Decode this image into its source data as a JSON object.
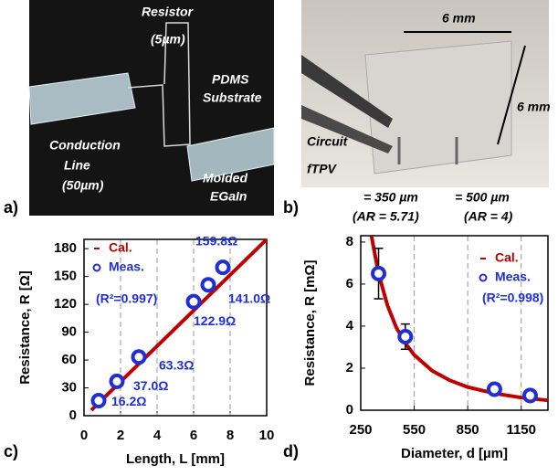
{
  "panel_labels": [
    "a)",
    "b)",
    "c)",
    "d)"
  ],
  "photo_a": {
    "resistor": [
      "Resistor",
      "(5µm)"
    ],
    "substrate": [
      "PDMS",
      "Substrate"
    ],
    "conduction": [
      "Conduction",
      "Line",
      "(50µm)"
    ],
    "molded": [
      "Molded",
      "EGaIn"
    ]
  },
  "photo_b": {
    "width": "6 mm",
    "height": "6 mm",
    "circuit": "Circuit",
    "ftpv": "fTPV",
    "d1": "= 350 µm",
    "ar1": "(AR = 5.71)",
    "d2": "= 500 µm",
    "ar2": "(AR = 4)"
  },
  "chart_data": [
    {
      "type": "scatter",
      "xlabel": "Length, L [mm]",
      "ylabel": "Resistance, R [Ω]",
      "annotation": "(R²=0.997)",
      "xlim": [
        0,
        10
      ],
      "ylim": [
        0,
        190
      ],
      "xticks": [
        0,
        2,
        4,
        6,
        8,
        10
      ],
      "yticks": [
        0,
        30,
        60,
        90,
        120,
        150,
        180
      ],
      "grid": "x",
      "series": [
        {
          "name": "Cal.",
          "mode": "line",
          "color": "#c00000",
          "x": [
            0.4,
            10
          ],
          "values": [
            6,
            190
          ]
        },
        {
          "name": "Meas.",
          "mode": "markers",
          "color": "#1f2fd6",
          "x": [
            0.8,
            1.8,
            3.0,
            6.0,
            6.8,
            7.6
          ],
          "values": [
            16.2,
            37.0,
            63.3,
            122.9,
            141.0,
            159.8
          ],
          "value_labels": [
            "16.2Ω",
            "37.0Ω",
            "63.3Ω",
            "122.9Ω",
            "141.0Ω",
            "159.8Ω"
          ]
        }
      ]
    },
    {
      "type": "scatter",
      "xlabel": "Diameter, d [µm]",
      "ylabel": "Resistance, R [mΩ]",
      "annotation": "(R²=0.998)",
      "xlim": [
        250,
        1300
      ],
      "ylim": [
        0,
        8.3
      ],
      "xticks": [
        250,
        550,
        850,
        1150
      ],
      "yticks": [
        0,
        2,
        4,
        6,
        8
      ],
      "grid": "x",
      "series": [
        {
          "name": "Cal.",
          "mode": "line",
          "color": "#c00000",
          "x": [
            310,
            350,
            400,
            450,
            500,
            550,
            650,
            750,
            850,
            1000,
            1150,
            1300
          ],
          "values": [
            8.29,
            6.5,
            4.98,
            3.93,
            3.19,
            2.63,
            1.88,
            1.42,
            1.1,
            0.8,
            0.6,
            0.47
          ]
        },
        {
          "name": "Meas.",
          "mode": "markers",
          "color": "#1f2fd6",
          "x": [
            350,
            500,
            1000,
            1200
          ],
          "values": [
            6.5,
            3.5,
            1.0,
            0.7
          ],
          "errors": [
            1.2,
            0.6,
            null,
            null
          ]
        }
      ]
    }
  ]
}
